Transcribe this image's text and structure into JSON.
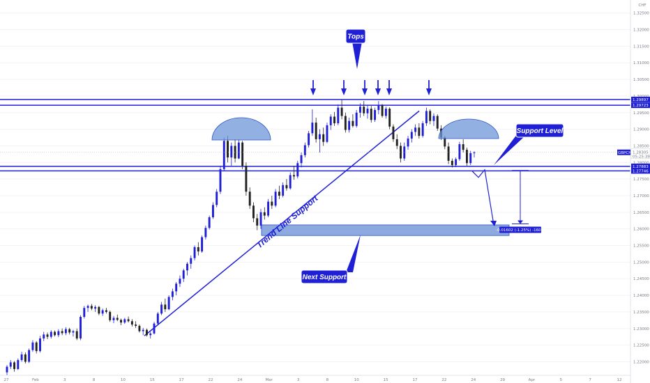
{
  "chart_data": {
    "type": "candlestick",
    "symbol": "GBPCHF",
    "currency_label": "CHF",
    "last_price": "1.28305",
    "countdown": "05:25:39",
    "price_axis": {
      "ylim": [
        1.2159,
        1.3285
      ],
      "ticks": [
        "1.32500",
        "1.32000",
        "1.31500",
        "1.31000",
        "1.30500",
        "1.30000",
        "1.29500",
        "1.29000",
        "1.28500",
        "1.28000",
        "1.27500",
        "1.27000",
        "1.26500",
        "1.26000",
        "1.25500",
        "1.25000",
        "1.24500",
        "1.24000",
        "1.23500",
        "1.23000",
        "1.22500",
        "1.22000"
      ]
    },
    "time_axis": {
      "labels": [
        "27",
        "Feb",
        "3",
        "8",
        "10",
        "15",
        "17",
        "22",
        "24",
        "Mar",
        "3",
        "8",
        "10",
        "15",
        "17",
        "22",
        "24",
        "29",
        "Apr",
        "5",
        "7",
        "12"
      ]
    },
    "horizontal_levels": [
      {
        "price": 1.29897,
        "label": "1.29897"
      },
      {
        "price": 1.29723,
        "label": "1.29723"
      },
      {
        "price": 1.27883,
        "label": "1.27883"
      },
      {
        "price": 1.27746,
        "label": "1.27746"
      }
    ],
    "support_zone": [
      1.258,
      1.2612
    ],
    "measure_label": "-0.01602 (-1.25%) -160.2",
    "annotations": {
      "tops": "Tops",
      "support_level": "Support Level",
      "next_support": "Next Support",
      "trend_line_support": "Trend Line Support"
    },
    "candles": [
      [
        1.2168,
        1.219,
        1.216,
        1.2185
      ],
      [
        1.2185,
        1.2205,
        1.2178,
        1.2198
      ],
      [
        1.2198,
        1.2202,
        1.217,
        1.2178
      ],
      [
        1.2178,
        1.221,
        1.2175,
        1.2205
      ],
      [
        1.2205,
        1.223,
        1.22,
        1.2222
      ],
      [
        1.2222,
        1.2228,
        1.2195,
        1.22
      ],
      [
        1.22,
        1.224,
        1.2196,
        1.2235
      ],
      [
        1.2235,
        1.2265,
        1.223,
        1.2258
      ],
      [
        1.2258,
        1.2262,
        1.2225,
        1.2232
      ],
      [
        1.2232,
        1.2278,
        1.2228,
        1.227
      ],
      [
        1.227,
        1.229,
        1.2262,
        1.2282
      ],
      [
        1.2282,
        1.2288,
        1.2268,
        1.2275
      ],
      [
        1.2275,
        1.2295,
        1.227,
        1.229
      ],
      [
        1.229,
        1.2294,
        1.2276,
        1.228
      ],
      [
        1.228,
        1.2298,
        1.2274,
        1.2292
      ],
      [
        1.2292,
        1.23,
        1.228,
        1.2286
      ],
      [
        1.2286,
        1.2304,
        1.228,
        1.2298
      ],
      [
        1.2298,
        1.2302,
        1.2282,
        1.2288
      ],
      [
        1.2288,
        1.2296,
        1.2276,
        1.2292
      ],
      [
        1.2292,
        1.23,
        1.2265,
        1.227
      ],
      [
        1.227,
        1.234,
        1.2265,
        1.2335
      ],
      [
        1.2335,
        1.2368,
        1.233,
        1.2362
      ],
      [
        1.2362,
        1.2372,
        1.235,
        1.2368
      ],
      [
        1.2368,
        1.2374,
        1.2355,
        1.236
      ],
      [
        1.236,
        1.237,
        1.235,
        1.2365
      ],
      [
        1.2365,
        1.2368,
        1.234,
        1.2345
      ],
      [
        1.2345,
        1.236,
        1.2338,
        1.2355
      ],
      [
        1.2355,
        1.2362,
        1.2345,
        1.235
      ],
      [
        1.235,
        1.2354,
        1.232,
        1.2325
      ],
      [
        1.2325,
        1.2338,
        1.2316,
        1.2332
      ],
      [
        1.2332,
        1.2342,
        1.2322,
        1.2326
      ],
      [
        1.2326,
        1.233,
        1.231,
        1.2318
      ],
      [
        1.2318,
        1.2332,
        1.2314,
        1.2328
      ],
      [
        1.2328,
        1.2336,
        1.2318,
        1.2322
      ],
      [
        1.2322,
        1.2328,
        1.2306,
        1.2312
      ],
      [
        1.2312,
        1.2322,
        1.2302,
        1.2308
      ],
      [
        1.2308,
        1.2312,
        1.2288,
        1.2292
      ],
      [
        1.2292,
        1.2302,
        1.228,
        1.2296
      ],
      [
        1.2296,
        1.23,
        1.2276,
        1.228
      ],
      [
        1.228,
        1.229,
        1.227,
        1.2285
      ],
      [
        1.2285,
        1.232,
        1.2282,
        1.2315
      ],
      [
        1.2315,
        1.235,
        1.231,
        1.2345
      ],
      [
        1.2345,
        1.238,
        1.234,
        1.2372
      ],
      [
        1.2372,
        1.239,
        1.235,
        1.2358
      ],
      [
        1.2358,
        1.24,
        1.2355,
        1.2395
      ],
      [
        1.2395,
        1.242,
        1.2385,
        1.2412
      ],
      [
        1.2412,
        1.244,
        1.24,
        1.2435
      ],
      [
        1.2435,
        1.246,
        1.2425,
        1.245
      ],
      [
        1.245,
        1.248,
        1.244,
        1.2475
      ],
      [
        1.2475,
        1.25,
        1.246,
        1.2495
      ],
      [
        1.2495,
        1.252,
        1.248,
        1.2512
      ],
      [
        1.2512,
        1.255,
        1.2505,
        1.2545
      ],
      [
        1.2545,
        1.256,
        1.252,
        1.2532
      ],
      [
        1.2532,
        1.258,
        1.2528,
        1.2575
      ],
      [
        1.2575,
        1.261,
        1.2568,
        1.2603
      ],
      [
        1.2603,
        1.264,
        1.2598,
        1.2635
      ],
      [
        1.2635,
        1.268,
        1.263,
        1.2672
      ],
      [
        1.2672,
        1.272,
        1.2665,
        1.2712
      ],
      [
        1.2712,
        1.279,
        1.2705,
        1.278
      ],
      [
        1.278,
        1.2875,
        1.2775,
        1.2865
      ],
      [
        1.2865,
        1.288,
        1.28,
        1.2815
      ],
      [
        1.2815,
        1.286,
        1.279,
        1.285
      ],
      [
        1.285,
        1.287,
        1.28,
        1.2812
      ],
      [
        1.2812,
        1.287,
        1.281,
        1.286
      ],
      [
        1.286,
        1.2865,
        1.278,
        1.279
      ],
      [
        1.279,
        1.28,
        1.27,
        1.2712
      ],
      [
        1.2712,
        1.2725,
        1.266,
        1.267
      ],
      [
        1.267,
        1.268,
        1.262,
        1.2632
      ],
      [
        1.2632,
        1.2645,
        1.2596,
        1.261
      ],
      [
        1.261,
        1.266,
        1.26,
        1.265
      ],
      [
        1.265,
        1.2665,
        1.2628,
        1.264
      ],
      [
        1.264,
        1.269,
        1.2635,
        1.2682
      ],
      [
        1.2682,
        1.27,
        1.266,
        1.267
      ],
      [
        1.267,
        1.272,
        1.2665,
        1.2712
      ],
      [
        1.2712,
        1.273,
        1.269,
        1.27
      ],
      [
        1.27,
        1.274,
        1.2695,
        1.2732
      ],
      [
        1.2732,
        1.275,
        1.2715,
        1.2722
      ],
      [
        1.2722,
        1.277,
        1.2718,
        1.2762
      ],
      [
        1.2762,
        1.279,
        1.2748,
        1.2758
      ],
      [
        1.2758,
        1.2805,
        1.2752,
        1.2798
      ],
      [
        1.2798,
        1.283,
        1.2785,
        1.2822
      ],
      [
        1.2822,
        1.286,
        1.2815,
        1.2852
      ],
      [
        1.2852,
        1.2895,
        1.2845,
        1.2888
      ],
      [
        1.2888,
        1.296,
        1.288,
        1.292
      ],
      [
        1.292,
        1.2935,
        1.286,
        1.287
      ],
      [
        1.287,
        1.29,
        1.283,
        1.2885
      ],
      [
        1.2885,
        1.2905,
        1.285,
        1.2862
      ],
      [
        1.2862,
        1.292,
        1.2858,
        1.2912
      ],
      [
        1.2912,
        1.2945,
        1.2898,
        1.2938
      ],
      [
        1.2938,
        1.2952,
        1.291,
        1.2918
      ],
      [
        1.2918,
        1.2975,
        1.2912,
        1.2965
      ],
      [
        1.2965,
        1.2988,
        1.293,
        1.294
      ],
      [
        1.294,
        1.295,
        1.289,
        1.2898
      ],
      [
        1.2898,
        1.2935,
        1.289,
        1.2925
      ],
      [
        1.2925,
        1.2945,
        1.2905,
        1.291
      ],
      [
        1.291,
        1.2958,
        1.2905,
        1.295
      ],
      [
        1.295,
        1.2978,
        1.2935,
        1.2968
      ],
      [
        1.2968,
        1.2985,
        1.294,
        1.2948
      ],
      [
        1.2948,
        1.2972,
        1.2932,
        1.2962
      ],
      [
        1.2962,
        1.297,
        1.292,
        1.2928
      ],
      [
        1.2928,
        1.2965,
        1.2922,
        1.2958
      ],
      [
        1.2958,
        1.2985,
        1.2945,
        1.2972
      ],
      [
        1.2972,
        1.2976,
        1.2935,
        1.294
      ],
      [
        1.294,
        1.2968,
        1.2932,
        1.2962
      ],
      [
        1.2962,
        1.2966,
        1.29,
        1.2908
      ],
      [
        1.2908,
        1.2915,
        1.2862,
        1.287
      ],
      [
        1.287,
        1.2885,
        1.284,
        1.285
      ],
      [
        1.285,
        1.286,
        1.28,
        1.2812
      ],
      [
        1.2812,
        1.286,
        1.2805,
        1.2848
      ],
      [
        1.2848,
        1.288,
        1.2838,
        1.2872
      ],
      [
        1.2872,
        1.29,
        1.286,
        1.2892
      ],
      [
        1.2892,
        1.2915,
        1.288,
        1.2905
      ],
      [
        1.2905,
        1.2918,
        1.2872,
        1.288
      ],
      [
        1.288,
        1.2925,
        1.2875,
        1.2918
      ],
      [
        1.2918,
        1.2965,
        1.291,
        1.2955
      ],
      [
        1.2955,
        1.296,
        1.2915,
        1.2925
      ],
      [
        1.2925,
        1.2948,
        1.291,
        1.294
      ],
      [
        1.294,
        1.2945,
        1.2895,
        1.2902
      ],
      [
        1.2902,
        1.2912,
        1.2868,
        1.2875
      ],
      [
        1.2875,
        1.288,
        1.284,
        1.2848
      ],
      [
        1.2848,
        1.286,
        1.2795,
        1.2805
      ],
      [
        1.2805,
        1.2812,
        1.2785,
        1.2792
      ],
      [
        1.2792,
        1.2815,
        1.2786,
        1.281
      ],
      [
        1.281,
        1.2862,
        1.2805,
        1.2855
      ],
      [
        1.2855,
        1.287,
        1.283,
        1.2838
      ],
      [
        1.2838,
        1.2845,
        1.279,
        1.2798
      ],
      [
        1.2798,
        1.2835,
        1.2792,
        1.2828
      ],
      [
        1.2828,
        1.2834,
        1.2815,
        1.283
      ]
    ]
  }
}
